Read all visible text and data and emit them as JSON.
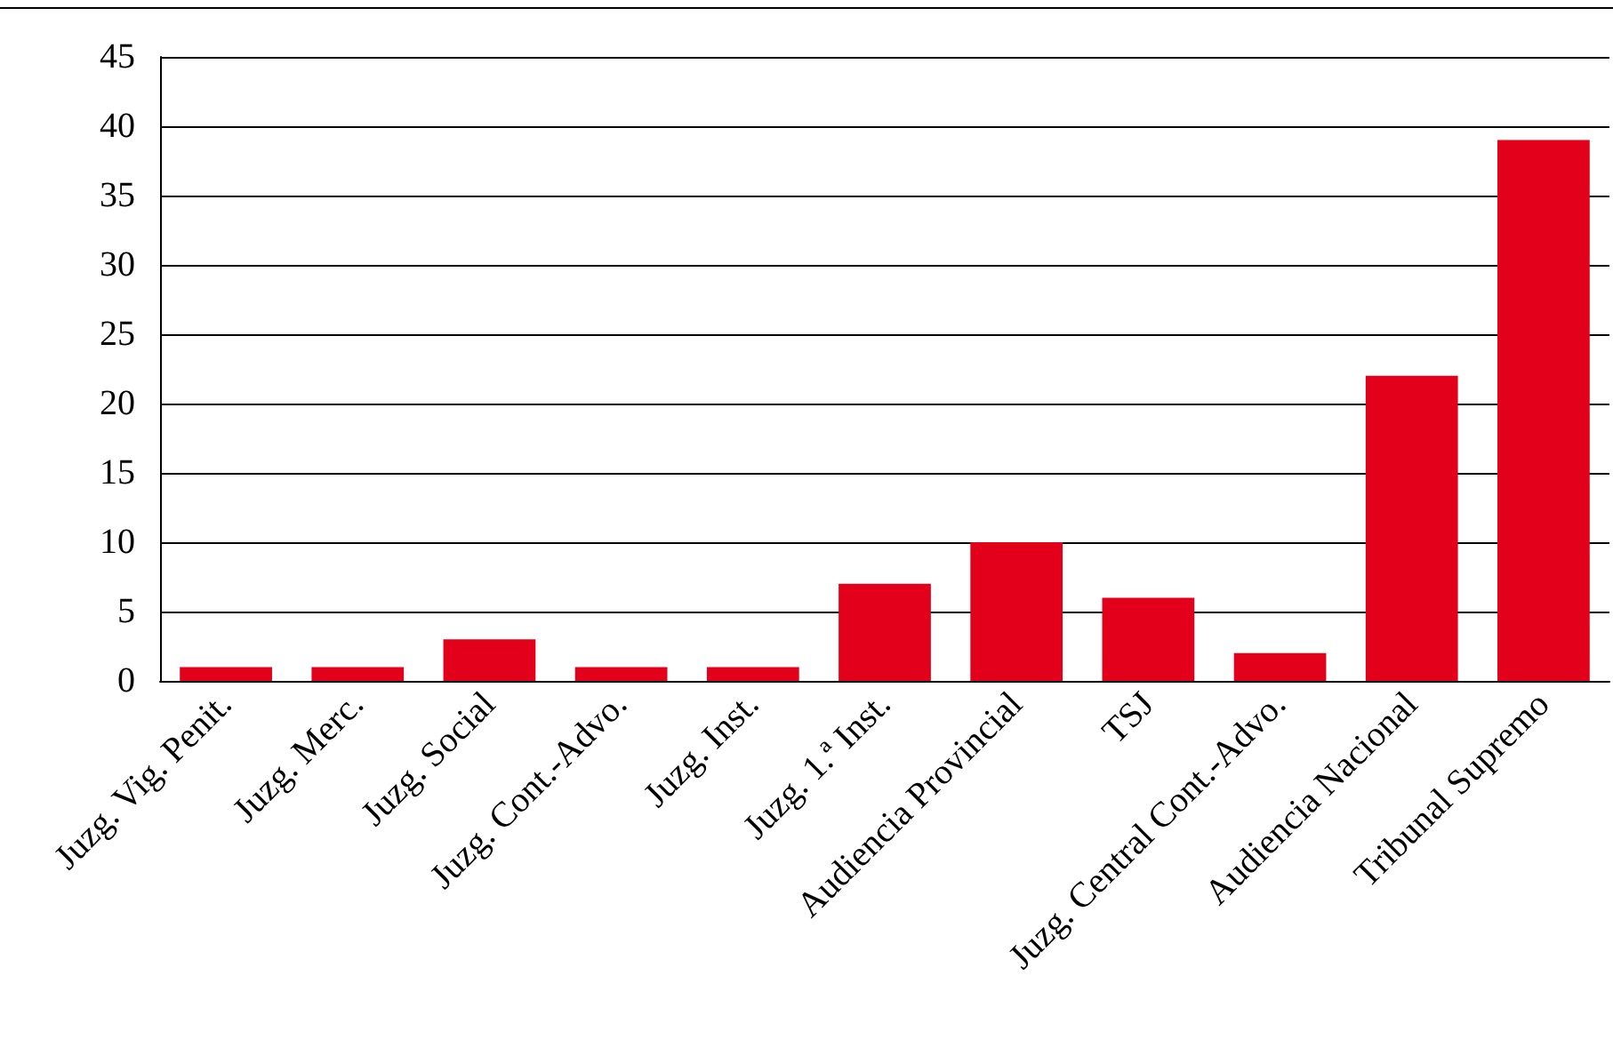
{
  "chart_data": {
    "type": "bar",
    "categories": [
      "Juzg. Vig. Penit.",
      "Juzg. Merc.",
      "Juzg. Social",
      "Juzg. Cont.-Advo.",
      "Juzg. Inst.",
      "Juzg. 1.ª Inst.",
      "Audiencia Provincial",
      "TSJ",
      "Juzg. Central Cont.-Advo.",
      "Audiencia Nacional",
      "Tribunal Supremo"
    ],
    "values": [
      1,
      1,
      3,
      1,
      1,
      7,
      10,
      6,
      2,
      22,
      39
    ],
    "color": "#e2001a",
    "ylim": [
      0,
      45
    ],
    "yticks": [
      0,
      5,
      10,
      15,
      20,
      25,
      30,
      35,
      40,
      45
    ],
    "grid": "y"
  }
}
